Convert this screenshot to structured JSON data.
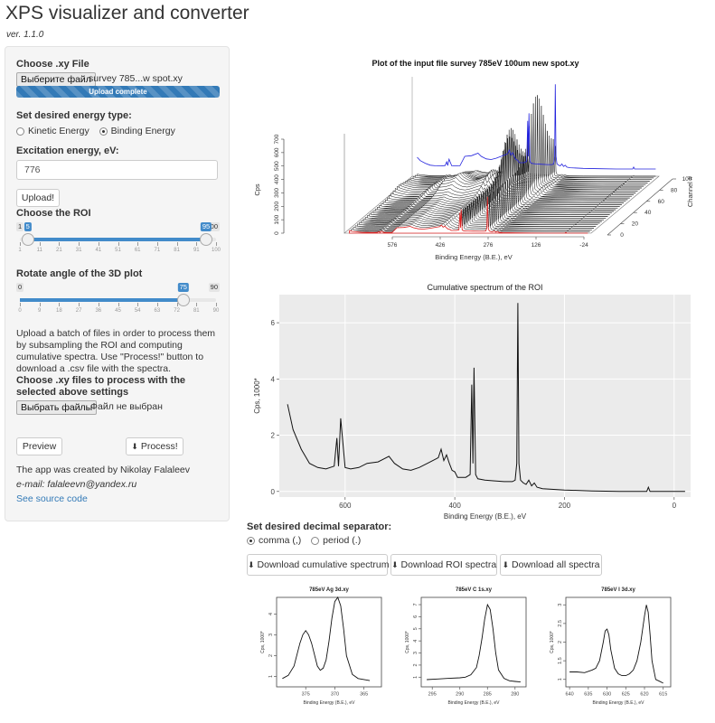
{
  "app": {
    "title": "XPS visualizer and converter",
    "version": "ver. 1.1.0"
  },
  "sidebar": {
    "file_section": {
      "label": "Choose .xy File",
      "button_label": "Выберите файл",
      "file_name": "survey 785...w spot.xy",
      "upload_status": "Upload complete"
    },
    "energy_type": {
      "label": "Set desired energy type:",
      "options": [
        {
          "label": "Kinetic Energy",
          "selected": false
        },
        {
          "label": "Binding Energy",
          "selected": true
        }
      ]
    },
    "excitation": {
      "label": "Excitation energy, eV:",
      "value": "776"
    },
    "upload_button": "Upload!",
    "roi": {
      "label": "Choose the ROI",
      "min": "1",
      "max": "100",
      "low": "5",
      "high": "95",
      "low_fraction": 0.0404,
      "high_fraction": 0.9495,
      "ticks": [
        "1",
        "11",
        "21",
        "31",
        "41",
        "51",
        "61",
        "71",
        "81",
        "91",
        "100"
      ]
    },
    "rotate": {
      "label": "Rotate angle of the 3D plot",
      "min": "0",
      "max": "90",
      "value": "75",
      "value_fraction": 0.8333,
      "ticks": [
        "0",
        "9",
        "18",
        "27",
        "36",
        "45",
        "54",
        "63",
        "72",
        "81",
        "90"
      ]
    },
    "batch_help": "Upload a batch of files in order to process them by subsampling the ROI and computing cumulative spectra. Use \"Process!\" button to download a .csv file with the spectra.",
    "batch": {
      "label": "Choose .xy files to process with the selected above settings",
      "button_label": "Выбрать файлы",
      "file_name": "Файл не выбран"
    },
    "preview_button": "Preview",
    "process_button": "Process!",
    "credit": "The app was created by Nikolay Falaleev",
    "email": "e-mail: falaleevn@yandex.ru",
    "source_link": "See source code"
  },
  "plot3d": {
    "title": "Plot of the input file  survey 785eV 100um new spot.xy",
    "xlabel": "Binding Energy (B.E.), eV",
    "ylabel": "Cps",
    "zlabel": "Channel #",
    "xticks": [
      "576",
      "426",
      "276",
      "126",
      "-24"
    ],
    "yticks": [
      "0",
      "100",
      "200",
      "300",
      "400",
      "500",
      "600",
      "700"
    ],
    "zticks": [
      "0",
      "20",
      "40",
      "60",
      "80",
      "100"
    ]
  },
  "chart_data": [
    {
      "type": "line",
      "title": "Cumulative spectrum of the ROI",
      "xlabel": "Binding Energy (B.E.), eV",
      "ylabel": "Cps, 1000*",
      "xlim": [
        720,
        -30
      ],
      "ylim": [
        -0.2,
        7
      ],
      "xticks": [
        600,
        400,
        200,
        0
      ],
      "yticks": [
        0,
        2,
        4,
        6
      ],
      "series": [
        {
          "x": [
            705,
            695,
            680,
            665,
            650,
            635,
            620,
            615,
            612,
            608,
            600,
            590,
            575,
            560,
            540,
            520,
            510,
            495,
            480,
            465,
            450,
            440,
            430,
            425,
            420,
            415,
            410,
            405,
            400,
            395,
            390,
            380,
            372,
            369,
            367,
            365,
            362,
            358,
            345,
            330,
            310,
            295,
            290,
            287,
            285,
            283,
            280,
            275,
            270,
            265,
            260,
            255,
            250,
            240,
            200,
            150,
            100,
            60,
            50,
            47,
            44,
            40,
            20,
            0,
            -20
          ],
          "y": [
            3.1,
            2.2,
            1.5,
            1.0,
            0.85,
            0.8,
            0.9,
            1.9,
            0.9,
            2.6,
            0.85,
            0.8,
            0.85,
            1.0,
            1.05,
            1.25,
            1.0,
            0.8,
            0.75,
            0.85,
            1.0,
            1.1,
            1.2,
            1.5,
            1.1,
            1.3,
            1.0,
            0.75,
            0.7,
            0.5,
            0.5,
            0.5,
            0.6,
            3.8,
            1.0,
            4.4,
            0.6,
            0.45,
            0.4,
            0.38,
            0.35,
            0.35,
            0.4,
            1.0,
            6.7,
            1.0,
            0.4,
            0.3,
            0.25,
            0.4,
            0.2,
            0.3,
            0.15,
            0.1,
            0.05,
            0.02,
            0.0,
            0.0,
            0.0,
            0.15,
            0.0,
            0.0,
            0.0,
            0.0,
            0.0
          ]
        }
      ]
    },
    {
      "type": "line",
      "title": "785eV  Ag 3d.xy",
      "xlabel": "Binding Energy (B.E.), eV",
      "ylabel": "Cps, 1000*",
      "xlim": [
        380,
        362
      ],
      "ylim": [
        0.5,
        4.8
      ],
      "xticks": [
        375,
        370,
        365
      ],
      "yticks": [
        1,
        2,
        3,
        4
      ],
      "series": [
        {
          "x": [
            379,
            378,
            377,
            376,
            375.5,
            375,
            374.5,
            374,
            373,
            372.5,
            372,
            371.5,
            371,
            370.5,
            370,
            369.5,
            369,
            368.5,
            368,
            367,
            366,
            365,
            364
          ],
          "y": [
            0.9,
            1.05,
            1.5,
            2.6,
            3.0,
            3.2,
            3.0,
            2.6,
            1.5,
            1.3,
            1.4,
            1.8,
            2.7,
            3.8,
            4.6,
            4.8,
            4.4,
            3.3,
            2.0,
            1.1,
            0.9,
            0.85,
            0.8
          ]
        }
      ]
    },
    {
      "type": "line",
      "title": "785eV C 1s.xy",
      "xlabel": "Binding Energy (B.E.), eV",
      "ylabel": "Cps, 1000*",
      "xlim": [
        297,
        278
      ],
      "ylim": [
        0.2,
        7.6
      ],
      "xticks": [
        295,
        290,
        285,
        280
      ],
      "yticks": [
        1,
        2,
        3,
        4,
        5,
        6,
        7
      ],
      "series": [
        {
          "x": [
            296,
            294,
            292,
            290,
            289,
            288,
            287,
            286.5,
            286,
            285.5,
            285,
            284.5,
            284,
            283.5,
            283,
            282,
            281,
            280,
            279
          ],
          "y": [
            0.8,
            0.85,
            0.9,
            0.95,
            1.0,
            1.2,
            1.8,
            2.8,
            4.2,
            5.8,
            7.0,
            6.6,
            5.0,
            3.0,
            1.6,
            0.9,
            0.7,
            0.65,
            0.6
          ]
        }
      ]
    },
    {
      "type": "line",
      "title": "785eV I 3d.xy",
      "xlabel": "Binding Energy (B.E.), eV",
      "ylabel": "Cps, 1000*",
      "xlim": [
        641,
        613
      ],
      "ylim": [
        0.8,
        3.2
      ],
      "xticks": [
        640,
        635,
        630,
        625,
        620,
        615
      ],
      "yticks": [
        1.0,
        1.5,
        2.0,
        2.5,
        3.0
      ],
      "series": [
        {
          "x": [
            640,
            638,
            636,
            634,
            633,
            632,
            631,
            630.5,
            630,
            629.5,
            629,
            628,
            627,
            626,
            625,
            624,
            623,
            622,
            621,
            620,
            619.5,
            619,
            618.5,
            618,
            617,
            616,
            615
          ],
          "y": [
            1.2,
            1.2,
            1.18,
            1.25,
            1.3,
            1.5,
            2.0,
            2.3,
            2.35,
            2.2,
            1.8,
            1.3,
            1.15,
            1.1,
            1.1,
            1.15,
            1.25,
            1.5,
            2.0,
            2.7,
            3.0,
            2.8,
            2.2,
            1.5,
            1.0,
            0.95,
            0.9
          ]
        }
      ]
    }
  ],
  "separator": {
    "label": "Set desired decimal separator:",
    "options": [
      {
        "label": "comma (,)",
        "selected": true
      },
      {
        "label": "period (.)",
        "selected": false
      }
    ]
  },
  "downloads": [
    {
      "label": "Download cumulative spectrum",
      "icon": "download-icon"
    },
    {
      "label": "Download ROI spectra",
      "icon": "download-icon"
    },
    {
      "label": "Download all spectra",
      "icon": "download-icon"
    }
  ],
  "colors": {
    "accent": "#428bca",
    "progress": "#337ab7",
    "plot_bg": "#ebebeb",
    "trace_blue": "#2222dd",
    "trace_red": "#dd2222"
  }
}
